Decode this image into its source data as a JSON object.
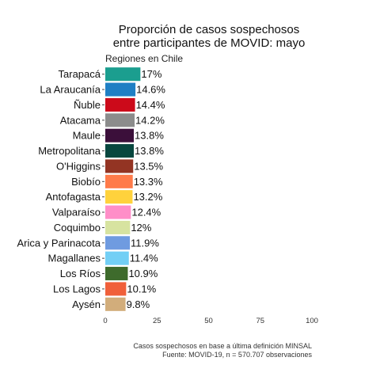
{
  "chart_data": {
    "type": "bar",
    "orientation": "horizontal",
    "title_lines": [
      "Proporción de casos sospechosos",
      "entre participantes de MOVID: mayo"
    ],
    "subtitle": "Regiones en Chile",
    "categories": [
      "Tarapacá",
      "La Araucanía",
      "Ñuble",
      "Atacama",
      "Maule",
      "Metropolitana",
      "O'Higgins",
      "Biobío",
      "Antofagasta",
      "Valparaíso",
      "Coquimbo",
      "Arica y Parinacota",
      "Magallanes",
      "Los Ríos",
      "Los Lagos",
      "Aysén"
    ],
    "values": [
      17,
      14.6,
      14.4,
      14.2,
      13.8,
      13.8,
      13.5,
      13.3,
      13.2,
      12.4,
      12,
      11.9,
      11.4,
      10.9,
      10.1,
      9.8
    ],
    "value_labels": [
      "17%",
      "14.6%",
      "14.4%",
      "14.2%",
      "13.8%",
      "13.8%",
      "13.5%",
      "13.3%",
      "13.2%",
      "12.4%",
      "12%",
      "11.9%",
      "11.4%",
      "10.9%",
      "10.1%",
      "9.8%"
    ],
    "colors": [
      "#1b9e8f",
      "#1f7fc4",
      "#cc0a1a",
      "#8c8c8c",
      "#3b0f3a",
      "#08473f",
      "#933423",
      "#ff7b4a",
      "#ffd23c",
      "#ff8ec8",
      "#d7e3a0",
      "#6f9be0",
      "#72cff5",
      "#3e6b2c",
      "#f0603a",
      "#d2ad7b"
    ],
    "x_ticks": [
      0,
      25,
      50,
      75,
      100
    ],
    "xlim": [
      0,
      100
    ],
    "grid": false,
    "legend": "none",
    "caption_lines": [
      "Casos sospechosos en base a última definición MINSAL",
      "Fuente: MOVID-19, n = 570.707 observaciones"
    ]
  }
}
